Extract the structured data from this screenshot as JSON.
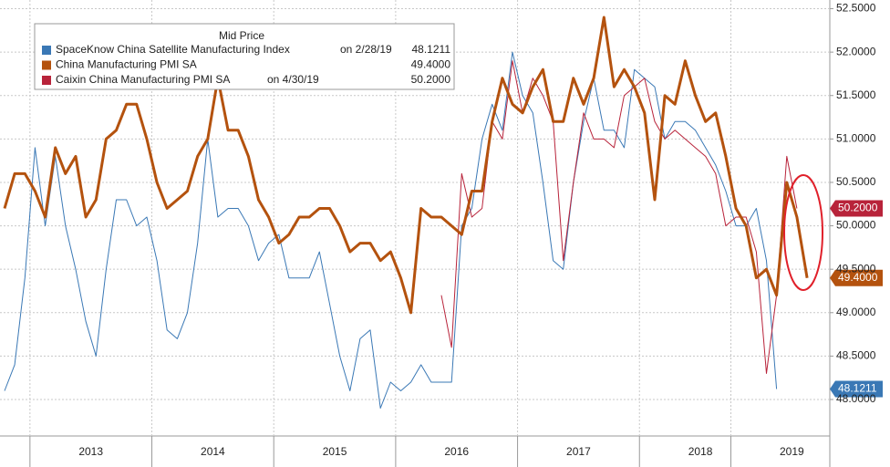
{
  "chart_data": {
    "type": "line",
    "legend_title": "Mid Price",
    "categories": [
      null,
      null,
      null,
      null,
      null,
      null,
      null,
      null,
      null,
      "2013",
      null,
      null,
      null,
      null,
      null,
      null,
      null,
      null,
      null,
      null,
      null,
      "2014",
      null,
      null,
      null,
      null,
      null,
      null,
      null,
      null,
      null,
      null,
      null,
      "2015",
      null,
      null,
      null,
      null,
      null,
      null,
      null,
      null,
      null,
      null,
      null,
      "2016",
      null,
      null,
      null,
      null,
      null,
      null,
      null,
      null,
      null,
      null,
      null,
      "2017",
      null,
      null,
      null,
      null,
      null,
      null,
      null,
      null,
      null,
      null,
      null,
      "2018",
      null,
      null,
      null,
      null,
      null,
      null,
      null,
      null,
      "2019",
      null
    ],
    "series": [
      {
        "name": "SpaceKnow China Satellite Manufacturing Index",
        "legend_date": "on 2/28/19",
        "last_value_label": "48.1211",
        "color": "#3a78b5",
        "width": 1,
        "values": [
          48.1,
          48.4,
          49.4,
          50.9,
          50.0,
          50.8,
          50.0,
          49.5,
          48.9,
          48.5,
          49.5,
          50.3,
          50.3,
          50.0,
          50.1,
          49.6,
          48.8,
          48.7,
          49.0,
          49.8,
          51.0,
          50.1,
          50.2,
          50.2,
          50.0,
          49.6,
          49.8,
          49.9,
          49.4,
          49.4,
          49.4,
          49.7,
          49.1,
          48.5,
          48.1,
          48.7,
          48.8,
          47.9,
          48.2,
          48.1,
          48.2,
          48.4,
          48.2,
          48.2,
          48.2,
          50.0,
          50.2,
          51.0,
          51.4,
          51.1,
          52.0,
          51.5,
          51.3,
          50.5,
          49.6,
          49.5,
          50.5,
          51.2,
          51.7,
          51.1,
          51.1,
          50.9,
          51.8,
          51.7,
          51.6,
          51.0,
          51.2,
          51.2,
          51.1,
          50.9,
          50.7,
          50.4,
          50.0,
          50.0,
          50.2,
          49.6,
          48.1211,
          null,
          null,
          null
        ]
      },
      {
        "name": "China Manufacturing PMI SA",
        "legend_date": "",
        "last_value_label": "49.4000",
        "color": "#b4520e",
        "width": 3,
        "values": [
          50.2,
          50.6,
          50.6,
          50.4,
          50.1,
          50.9,
          50.6,
          50.8,
          50.1,
          50.3,
          51.0,
          51.1,
          51.4,
          51.4,
          51.0,
          50.5,
          50.2,
          50.3,
          50.4,
          50.8,
          51.0,
          51.7,
          51.1,
          51.1,
          50.8,
          50.3,
          50.1,
          49.8,
          49.9,
          50.1,
          50.1,
          50.2,
          50.2,
          50.0,
          49.7,
          49.8,
          49.8,
          49.6,
          49.7,
          49.4,
          49.0,
          50.2,
          50.1,
          50.1,
          50.0,
          49.9,
          50.4,
          50.4,
          51.2,
          51.7,
          51.4,
          51.3,
          51.6,
          51.8,
          51.2,
          51.2,
          51.7,
          51.4,
          51.7,
          52.4,
          51.6,
          51.8,
          51.6,
          51.3,
          50.3,
          51.5,
          51.4,
          51.9,
          51.5,
          51.2,
          51.3,
          50.8,
          50.2,
          50.0,
          49.4,
          49.5,
          49.2,
          50.5,
          50.1,
          49.4
        ]
      },
      {
        "name": "Caixin China Manufacturing PMI SA",
        "legend_date": "on 4/30/19",
        "last_value_label": "50.2000",
        "color": "#b8233a",
        "width": 1,
        "values": [
          null,
          null,
          null,
          null,
          null,
          null,
          null,
          null,
          null,
          null,
          null,
          null,
          null,
          null,
          null,
          null,
          null,
          null,
          null,
          null,
          null,
          null,
          null,
          null,
          null,
          null,
          null,
          null,
          null,
          null,
          null,
          null,
          null,
          null,
          null,
          null,
          null,
          null,
          null,
          null,
          null,
          null,
          null,
          49.2,
          48.6,
          50.6,
          50.1,
          50.2,
          51.2,
          51.0,
          51.9,
          51.3,
          51.7,
          51.5,
          51.2,
          49.6,
          50.5,
          51.3,
          51.0,
          51.0,
          50.9,
          51.5,
          51.6,
          51.7,
          51.2,
          51.0,
          51.1,
          51.0,
          50.9,
          50.8,
          50.6,
          50.0,
          50.1,
          50.1,
          49.7,
          48.3,
          49.2,
          50.8,
          50.2,
          null
        ]
      }
    ],
    "ylim": [
      47.58,
      52.6
    ],
    "yticks": [
      {
        "value": 48,
        "label": "48.0000"
      },
      {
        "value": 48.5,
        "label": "48.5000"
      },
      {
        "value": 49,
        "label": "49.0000"
      },
      {
        "value": 49.5,
        "label": "49.5000"
      },
      {
        "value": 50,
        "label": "50.0000"
      },
      {
        "value": 50.5,
        "label": "50.5000"
      },
      {
        "value": 51,
        "label": "51.0000"
      },
      {
        "value": 51.5,
        "label": "51.5000"
      },
      {
        "value": 52,
        "label": "52.0000"
      },
      {
        "value": 52.5,
        "label": "52.5000"
      }
    ],
    "grid": true
  }
}
